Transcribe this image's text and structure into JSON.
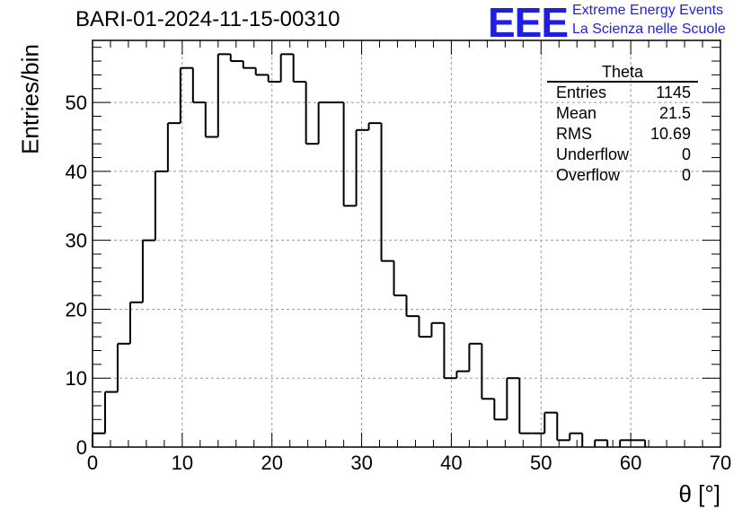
{
  "header": {
    "run_title": "BARI-01-2024-11-15-00310",
    "logo_mark": "EEE",
    "logo_line1": "Extreme Energy Events",
    "logo_line2": "La Scienza nelle Scuole"
  },
  "stats": {
    "title": "Theta",
    "rows": [
      {
        "label": "Entries",
        "value": "1145"
      },
      {
        "label": "Mean",
        "value": "21.5"
      },
      {
        "label": "RMS",
        "value": "10.69"
      },
      {
        "label": "Underflow",
        "value": "0"
      },
      {
        "label": "Overflow",
        "value": "0"
      }
    ]
  },
  "colors": {
    "line": "#000000",
    "grid": "#9a9a9a",
    "logo": "#1f1fe0"
  },
  "chart_data": {
    "type": "bar",
    "style": "step-histogram",
    "title": "BARI-01-2024-11-15-00310",
    "xlabel": "θ [°]",
    "ylabel": "Entries/bin",
    "xlim": [
      0,
      70
    ],
    "ylim": [
      0,
      59
    ],
    "grid": true,
    "x_ticks": [
      0,
      10,
      20,
      30,
      40,
      50,
      60,
      70
    ],
    "y_ticks": [
      0,
      10,
      20,
      30,
      40,
      50
    ],
    "bin_width": 1.4,
    "bin_low_edges": [
      0,
      1.4,
      2.8,
      4.2,
      5.6,
      7,
      8.4,
      9.8,
      11.2,
      12.6,
      14,
      15.4,
      16.8,
      18.2,
      19.6,
      21,
      22.4,
      23.8,
      25.2,
      26.6,
      28,
      29.4,
      30.8,
      32.2,
      33.6,
      35,
      36.4,
      37.8,
      39.2,
      40.6,
      42,
      43.4,
      44.8,
      46.2,
      47.6,
      49,
      50.4,
      51.8,
      53.2,
      54.6,
      56,
      57.4,
      58.8,
      60.2,
      61.6,
      63,
      64.4,
      65.8,
      67.2,
      68.6
    ],
    "values": [
      2,
      8,
      15,
      21,
      30,
      40,
      47,
      55,
      50,
      45,
      57,
      56,
      55,
      54,
      53,
      57,
      53,
      44,
      50,
      50,
      35,
      46,
      47,
      27,
      22,
      19,
      16,
      18,
      10,
      11,
      15,
      7,
      4,
      10,
      2,
      2,
      5,
      1,
      2,
      0,
      1,
      0,
      1,
      1,
      0,
      0,
      0,
      0,
      0,
      0
    ]
  }
}
